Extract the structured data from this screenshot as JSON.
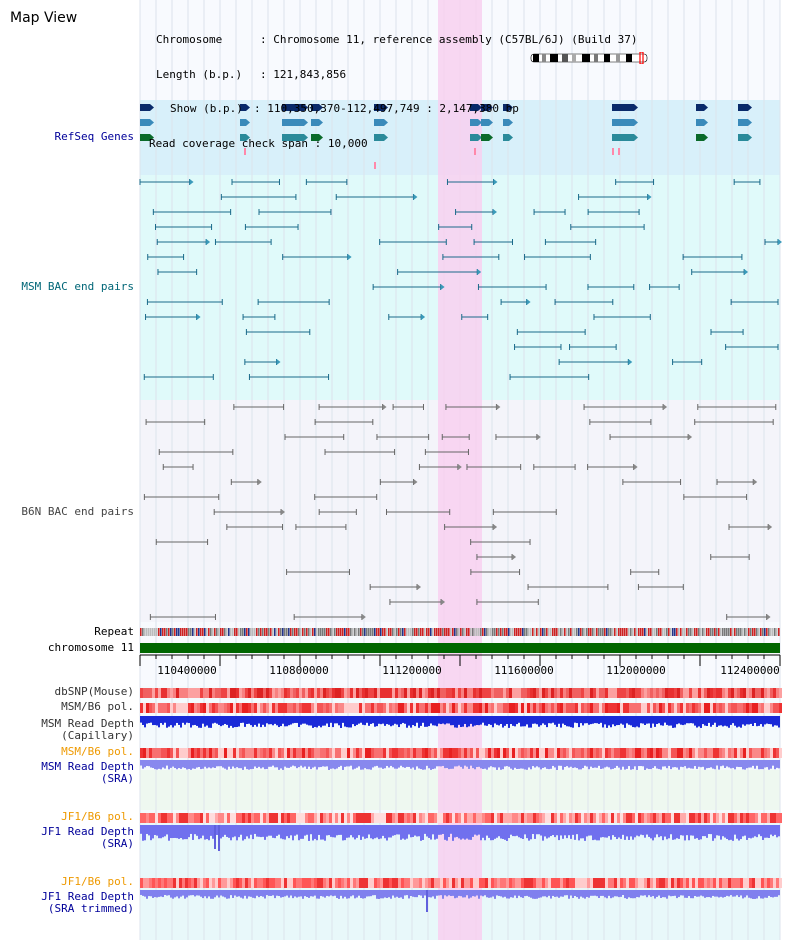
{
  "page": {
    "title": "Map View"
  },
  "info": {
    "chromosome_label": "Chromosome",
    "chromosome_value": "Chromosome 11, reference assembly (C57BL/6J) (Build 37)",
    "length_label": "Length (b.p.)",
    "length_value": "121,843,856",
    "show_label": "Show (b.p.)",
    "show_value": "110,350,370-112,497,749 : 2,147,380 bp",
    "span_label": "Read coverage check span",
    "span_value": "10,000"
  },
  "tracks": {
    "refseq": "RefSeq Genes",
    "msm_bac": "MSM BAC end pairs",
    "b6n_bac": "B6N BAC end pairs",
    "repeat": "Repeat",
    "chromosome": "chromosome 11",
    "dbsnp": "dbSNP(Mouse)",
    "msm_b6_pol_1": "MSM/B6 pol.",
    "msm_read_depth_cap_1": "MSM Read Depth",
    "msm_read_depth_cap_2": "(Capillary)",
    "msm_b6_pol_2": "MSM/B6 pol.",
    "msm_read_depth_sra_1": "MSM Read Depth",
    "msm_read_depth_sra_2": "(SRA)",
    "jf1_b6_pol_1": "JF1/B6 pol.",
    "jf1_read_depth_1": "JF1 Read Depth",
    "jf1_read_depth_2": "(SRA)",
    "jf1_b6_pol_2": "JF1/B6 pol.",
    "jf1_read_depth_trim_1": "JF1 Read Depth",
    "jf1_read_depth_trim_2": "(SRA trimmed)"
  },
  "axis": {
    "ticks": [
      "110400000",
      "110800000",
      "111200000",
      "111600000",
      "112000000",
      "112400000"
    ]
  },
  "colors": {
    "label_blue": "#000099",
    "label_teal": "#006677",
    "label_gray": "#444444",
    "label_orange": "#ee9900",
    "highlight": "#f8d0f0",
    "refseq_bg": "#d8f0fa",
    "msm_bg": "#e0fafa",
    "b6n_bg": "#f4f4fa",
    "chromosome_green": "#006600"
  }
}
